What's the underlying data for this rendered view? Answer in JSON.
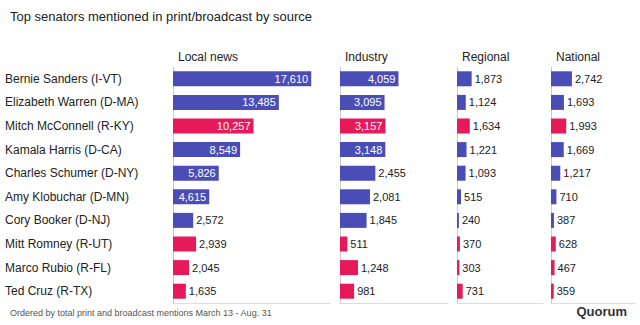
{
  "title": "Top senators mentioned in print/broadcast by source",
  "annotations": [
    "Ordered by total print and broadcast mentions March 13 - Aug. 31",
    "Quorum"
  ],
  "chart_data": [
    {
      "type": "bar",
      "title": "Local news",
      "orientation": "horizontal",
      "data_labels": true,
      "tick_labels": "y",
      "categories": [
        "Bernie Sanders (I-VT)",
        "Elizabeth Warren (D-MA)",
        "Mitch McConnell (R-KY)",
        "Kamala Harris (D-CA)",
        "Charles Schumer (D-NY)",
        "Amy Klobuchar (D-MN)",
        "Cory Booker (D-NJ)",
        "Mitt Romney (R-UT)",
        "Marco Rubio (R-FL)",
        "Ted Cruz (R-TX)"
      ],
      "values": [
        17610,
        13485,
        10257,
        8549,
        5826,
        4615,
        2572,
        2939,
        2045,
        1635
      ],
      "value_labels": [
        "17,610",
        "13,485",
        "10,257",
        "8,549",
        "5,826",
        "4,615",
        "2,572",
        "2,939",
        "2,045",
        "1,635"
      ],
      "colors": [
        "#4b4db6",
        "#4b4db6",
        "#e6195a",
        "#4b4db6",
        "#4b4db6",
        "#4b4db6",
        "#4b4db6",
        "#e6195a",
        "#e6195a",
        "#e6195a"
      ],
      "xlim": [
        0,
        20000
      ]
    },
    {
      "type": "bar",
      "title": "Industry",
      "orientation": "horizontal",
      "data_labels": true,
      "tick_labels": false,
      "categories": [
        "Bernie Sanders (I-VT)",
        "Elizabeth Warren (D-MA)",
        "Mitch McConnell (R-KY)",
        "Kamala Harris (D-CA)",
        "Charles Schumer (D-NY)",
        "Amy Klobuchar (D-MN)",
        "Cory Booker (D-NJ)",
        "Mitt Romney (R-UT)",
        "Marco Rubio (R-FL)",
        "Ted Cruz (R-TX)"
      ],
      "values": [
        4059,
        3095,
        3157,
        3148,
        2455,
        2081,
        1845,
        511,
        1248,
        981
      ],
      "value_labels": [
        "4,059",
        "3,095",
        "3,157",
        "3,148",
        "2,455",
        "2,081",
        "1,845",
        "511",
        "1,248",
        "981"
      ],
      "colors": [
        "#4b4db6",
        "#4b4db6",
        "#e6195a",
        "#4b4db6",
        "#4b4db6",
        "#4b4db6",
        "#4b4db6",
        "#e6195a",
        "#e6195a",
        "#e6195a"
      ],
      "xlim": [
        0,
        7500
      ]
    },
    {
      "type": "bar",
      "title": "Regional",
      "orientation": "horizontal",
      "data_labels": true,
      "tick_labels": false,
      "categories": [
        "Bernie Sanders (I-VT)",
        "Elizabeth Warren (D-MA)",
        "Mitch McConnell (R-KY)",
        "Kamala Harris (D-CA)",
        "Charles Schumer (D-NY)",
        "Amy Klobuchar (D-MN)",
        "Cory Booker (D-NJ)",
        "Mitt Romney (R-UT)",
        "Marco Rubio (R-FL)",
        "Ted Cruz (R-TX)"
      ],
      "values": [
        1873,
        1124,
        1634,
        1221,
        1093,
        515,
        240,
        370,
        303,
        731
      ],
      "value_labels": [
        "1,873",
        "1,124",
        "1,634",
        "1,221",
        "1,093",
        "515",
        "240",
        "370",
        "303",
        "731"
      ],
      "colors": [
        "#4b4db6",
        "#4b4db6",
        "#e6195a",
        "#4b4db6",
        "#4b4db6",
        "#4b4db6",
        "#4b4db6",
        "#e6195a",
        "#e6195a",
        "#e6195a"
      ],
      "xlim": [
        0,
        11000
      ]
    },
    {
      "type": "bar",
      "title": "National",
      "orientation": "horizontal",
      "data_labels": true,
      "tick_labels": false,
      "categories": [
        "Bernie Sanders (I-VT)",
        "Elizabeth Warren (D-MA)",
        "Mitch McConnell (R-KY)",
        "Kamala Harris (D-CA)",
        "Charles Schumer (D-NY)",
        "Amy Klobuchar (D-MN)",
        "Cory Booker (D-NJ)",
        "Mitt Romney (R-UT)",
        "Marco Rubio (R-FL)",
        "Ted Cruz (R-TX)"
      ],
      "values": [
        2742,
        1693,
        1993,
        1669,
        1217,
        710,
        387,
        628,
        467,
        359
      ],
      "value_labels": [
        "2,742",
        "1,693",
        "1,993",
        "1,669",
        "1,217",
        "710",
        "387",
        "628",
        "467",
        "359"
      ],
      "colors": [
        "#4b4db6",
        "#4b4db6",
        "#e6195a",
        "#4b4db6",
        "#4b4db6",
        "#4b4db6",
        "#4b4db6",
        "#e6195a",
        "#e6195a",
        "#e6195a"
      ],
      "xlim": [
        0,
        11000
      ]
    }
  ]
}
